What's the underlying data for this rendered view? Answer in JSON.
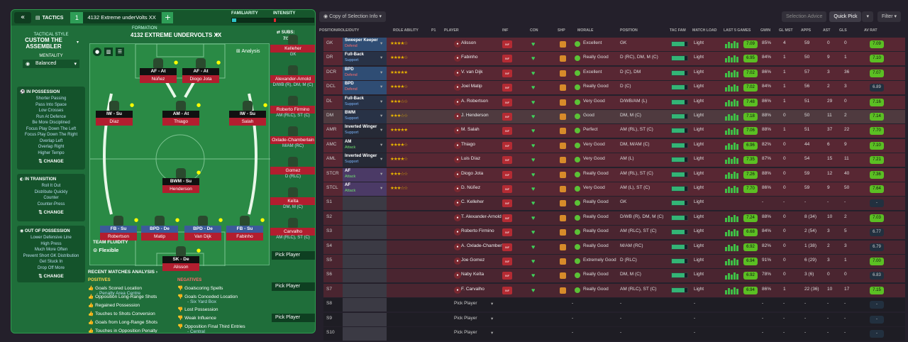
{
  "left": {
    "tactics_label": "TACTICS",
    "tactic_num": "1",
    "tactic_name": "4132 Extreme underVolts XX",
    "add": "+",
    "familiarity": "FAMILIARITY",
    "intensity": "INTENSITY",
    "tactical_style_label": "TACTICAL STYLE",
    "tactical_style": "CUSTOM THE ASSEMBLER",
    "mentality_label": "MENTALITY",
    "mentality": "Balanced",
    "formation_label": "FORMATION",
    "formation": "4132 EXTREME UNDERVOLTS XX",
    "subs_label": "SUBS:",
    "subs_count": "7/15",
    "analysis": "Analysis",
    "in_possession": {
      "title": "IN POSSESSION",
      "items": [
        "Shorter Passing",
        "Pass Into Space",
        "Low Crosses",
        "Run At Defence",
        "Be More Disciplined",
        "Focus Play Down The Left",
        "Focus Play Down The Right",
        "Overlap Left",
        "Overlap Right",
        "Higher Tempo"
      ],
      "change": "CHANGE"
    },
    "in_transition": {
      "title": "IN TRANSITION",
      "items": [
        "Roll It Out",
        "Distribute Quickly",
        "Counter",
        "Counter-Press"
      ],
      "change": "CHANGE"
    },
    "out_possession": {
      "title": "OUT OF POSSESSION",
      "items": [
        "Lower Defensive Line",
        "High Press",
        "Much More Often",
        "Prevent Short GK Distribution",
        "Get Stuck In",
        "Drop Off More"
      ],
      "change": "CHANGE"
    },
    "players": [
      {
        "role": "AF - At",
        "name": "Núñez"
      },
      {
        "role": "AF - At",
        "name": "Diogo Jota"
      },
      {
        "role": "IW - Su",
        "name": "Díaz"
      },
      {
        "role": "AM - At",
        "name": "Thiago"
      },
      {
        "role": "IW - Su",
        "name": "Salah"
      },
      {
        "role": "BWM - Su",
        "name": "Henderson"
      },
      {
        "role": "FB - Su",
        "name": "Robertson"
      },
      {
        "role": "BPD - De",
        "name": "Matip"
      },
      {
        "role": "BPD - De",
        "name": "Van Dijk"
      },
      {
        "role": "FB - Su",
        "name": "Fabinho"
      },
      {
        "role": "SK - De",
        "name": "Alisson"
      }
    ],
    "team_fluidity_label": "TEAM FLUIDITY",
    "team_fluidity": "Flexible",
    "subs": [
      {
        "name": "Kelleher",
        "pos": "GK"
      },
      {
        "name": "Alexander-Arnold",
        "pos": "D/WB (R), DM, M (C)"
      },
      {
        "name": "Roberto Firmino",
        "pos": "AM (RLC), ST (C)"
      },
      {
        "name": "Oxlade-Chamberlain",
        "pos": "M/AM (RC)"
      },
      {
        "name": "Gomez",
        "pos": "D (RLC)"
      },
      {
        "name": "Keïta",
        "pos": "DM, M (C)"
      },
      {
        "name": "Carvalho",
        "pos": "AM (RLC), ST (C)"
      }
    ],
    "pick_player": "Pick Player",
    "recent_title": "RECENT MATCHES ANALYSIS",
    "positives_label": "POSITIVES",
    "negatives_label": "NEGATIVES",
    "positives": [
      {
        "t": "Goals Scored Location",
        "s": "- Penalty Area Centre"
      },
      {
        "t": "Opposition Long-Range Shots",
        "s": ""
      },
      {
        "t": "Regained Possession",
        "s": ""
      },
      {
        "t": "Touches to Shots Conversion",
        "s": ""
      },
      {
        "t": "Goals from Long-Range Shots",
        "s": ""
      },
      {
        "t": "Touches in Opposition Penalty",
        "s": ""
      }
    ],
    "negatives": [
      {
        "t": "Goalscoring Spells",
        "s": ""
      },
      {
        "t": "Goals Conceded Location",
        "s": "- Six Yard Box"
      },
      {
        "t": "Lost Possession",
        "s": ""
      },
      {
        "t": "Weak Influence",
        "s": ""
      },
      {
        "t": "Opposition Final Third Entries",
        "s": "- Central"
      }
    ]
  },
  "right": {
    "copy_btn": "Copy of Selection Info",
    "selection_advice": "Selection Advice",
    "quick_pick": "Quick Pick",
    "filter": "Filter",
    "headers": [
      "POSITION/ROLE/DUTY",
      "ROLE ABILITY",
      "P1",
      "PLAYER",
      "INF",
      "CON",
      "SHP",
      "MORALE",
      "POSITION",
      "TAC FAM",
      "MATCH LOAD",
      "LAST 5 GAMES",
      "GWIN",
      "GL MST",
      "APPS",
      "AST",
      "GLS",
      "AV RAT"
    ],
    "rows": [
      {
        "pos": "GK",
        "t": "Sweeper Keeper",
        "d": "Defend",
        "stars": "★★★★☆",
        "player": "Alisson",
        "morale": "Excellent",
        "position": "GK",
        "load": "Light",
        "avr": "7.09",
        "gwin": "85%",
        "glm": "4",
        "apps": "59",
        "ast": "0",
        "gls": "0",
        "rat": "7.09"
      },
      {
        "pos": "DR",
        "t": "Full-Back",
        "d": "Support",
        "stars": "★★★★☆",
        "player": "Fabinho",
        "morale": "Really Good",
        "position": "D (RC), DM, M (C)",
        "load": "Light",
        "avr": "6.95",
        "gwin": "84%",
        "glm": "1",
        "apps": "50",
        "ast": "9",
        "gls": "1",
        "rat": "7.10"
      },
      {
        "pos": "DCR",
        "t": "BPD",
        "d": "Defend",
        "stars": "★★★★★",
        "player": "V. van Dijk",
        "morale": "Excellent",
        "position": "D (C), DM",
        "load": "Light",
        "avr": "7.02",
        "gwin": "86%",
        "glm": "1",
        "apps": "57",
        "ast": "3",
        "gls": "36",
        "rat": "7.07"
      },
      {
        "pos": "DCL",
        "t": "BPD",
        "d": "Defend",
        "stars": "★★★★☆",
        "player": "Joel Matip",
        "morale": "Really Good",
        "position": "D (C)",
        "load": "Light",
        "avr": "7.02",
        "gwin": "84%",
        "glm": "1",
        "apps": "56",
        "ast": "2",
        "gls": "3",
        "rat": "6.89"
      },
      {
        "pos": "DL",
        "t": "Full-Back",
        "d": "Support",
        "stars": "★★★☆☆",
        "player": "A. Robertson",
        "morale": "Very Good",
        "position": "D/WB/AM (L)",
        "load": "Light",
        "avr": "7.48",
        "gwin": "86%",
        "glm": "1",
        "apps": "51",
        "ast": "29",
        "gls": "0",
        "rat": "7.16"
      },
      {
        "pos": "DM",
        "t": "BWM",
        "d": "Support",
        "stars": "★★★☆☆",
        "player": "J. Henderson",
        "morale": "Good",
        "position": "DM, M (C)",
        "load": "Light",
        "avr": "7.18",
        "gwin": "88%",
        "glm": "0",
        "apps": "50",
        "ast": "11",
        "gls": "2",
        "rat": "7.14"
      },
      {
        "pos": "AMR",
        "t": "Inverted Winger",
        "d": "Support",
        "stars": "★★★★★",
        "player": "M. Salah",
        "morale": "Perfect",
        "position": "AM (RL), ST (C)",
        "load": "Light",
        "avr": "7.06",
        "gwin": "88%",
        "glm": "1",
        "apps": "51",
        "ast": "37",
        "gls": "22",
        "rat": "7.70"
      },
      {
        "pos": "AMC",
        "t": "AM",
        "d": "Attack",
        "stars": "★★★★☆",
        "player": "Thiago",
        "morale": "Very Good",
        "position": "DM, M/AM (C)",
        "load": "Light",
        "avr": "6.96",
        "gwin": "82%",
        "glm": "0",
        "apps": "44",
        "ast": "6",
        "gls": "9",
        "rat": "7.10"
      },
      {
        "pos": "AML",
        "t": "Inverted Winger",
        "d": "Support",
        "stars": "★★★★☆",
        "player": "Luis Díaz",
        "morale": "Very Good",
        "position": "AM (L)",
        "load": "Light",
        "avr": "7.35",
        "gwin": "87%",
        "glm": "0",
        "apps": "54",
        "ast": "15",
        "gls": "11",
        "rat": "7.21"
      },
      {
        "pos": "STCR",
        "t": "AF",
        "d": "Attack",
        "stars": "★★★☆☆",
        "player": "Diogo Jota",
        "morale": "Really Good",
        "position": "AM (RL), ST (C)",
        "load": "Light",
        "avr": "7.26",
        "gwin": "88%",
        "glm": "0",
        "apps": "59",
        "ast": "12",
        "gls": "40",
        "rat": "7.36"
      },
      {
        "pos": "STCL",
        "t": "AF",
        "d": "Attack",
        "stars": "★★★☆☆",
        "player": "D. Núñez",
        "morale": "Very Good",
        "position": "AM (L), ST (C)",
        "load": "Light",
        "avr": "7.70",
        "gwin": "86%",
        "glm": "0",
        "apps": "59",
        "ast": "9",
        "gls": "50",
        "rat": "7.64"
      },
      {
        "pos": "S1",
        "t": "",
        "d": "",
        "stars": "",
        "player": "C. Kelleher",
        "morale": "Really Good",
        "position": "GK",
        "load": "Light",
        "avr": "",
        "gwin": "-",
        "glm": "-",
        "apps": "-",
        "ast": "-",
        "gls": "-",
        "rat": "-"
      },
      {
        "pos": "S2",
        "t": "",
        "d": "",
        "stars": "",
        "player": "T. Alexander-Arnold",
        "morale": "Really Good",
        "position": "D/WB (R), DM, M (C)",
        "load": "Light",
        "avr": "7.24",
        "gwin": "88%",
        "glm": "0",
        "apps": "8 (34)",
        "ast": "10",
        "gls": "2",
        "rat": "7.03"
      },
      {
        "pos": "S3",
        "t": "",
        "d": "",
        "stars": "",
        "player": "Roberto Firmino",
        "morale": "Really Good",
        "position": "AM (RLC), ST (C)",
        "load": "Light",
        "avr": "6.68",
        "gwin": "84%",
        "glm": "0",
        "apps": "2 (54)",
        "ast": "3",
        "gls": "5",
        "rat": "6.77"
      },
      {
        "pos": "S4",
        "t": "",
        "d": "",
        "stars": "",
        "player": "A. Oxlade-Chamberlain",
        "morale": "Really Good",
        "position": "M/AM (RC)",
        "load": "Light",
        "avr": "6.92",
        "gwin": "82%",
        "glm": "0",
        "apps": "1 (38)",
        "ast": "2",
        "gls": "3",
        "rat": "6.79"
      },
      {
        "pos": "S5",
        "t": "",
        "d": "",
        "stars": "",
        "player": "Joe Gomez",
        "morale": "Extremely Good",
        "position": "D (RLC)",
        "load": "Light",
        "avr": "6.94",
        "gwin": "91%",
        "glm": "0",
        "apps": "6 (29)",
        "ast": "3",
        "gls": "1",
        "rat": "7.00"
      },
      {
        "pos": "S6",
        "t": "",
        "d": "",
        "stars": "",
        "player": "Naby Keïta",
        "morale": "Really Good",
        "position": "DM, M (C)",
        "load": "Light",
        "avr": "6.92",
        "gwin": "78%",
        "glm": "0",
        "apps": "3 (6)",
        "ast": "0",
        "gls": "0",
        "rat": "6.83"
      },
      {
        "pos": "S7",
        "t": "",
        "d": "",
        "stars": "",
        "player": "F. Carvalho",
        "morale": "Really Good",
        "position": "AM (RLC), ST (C)",
        "load": "Light",
        "avr": "6.94",
        "gwin": "86%",
        "glm": "1",
        "apps": "22 (36)",
        "ast": "10",
        "gls": "17",
        "rat": "7.15"
      },
      {
        "pos": "S8",
        "t": "",
        "d": "",
        "stars": "",
        "player": "Pick Player",
        "morale": "-",
        "position": "-",
        "load": "-",
        "avr": "",
        "gwin": "-",
        "glm": "-",
        "apps": "-",
        "ast": "-",
        "gls": "-",
        "rat": "-"
      },
      {
        "pos": "S9",
        "t": "",
        "d": "",
        "stars": "",
        "player": "Pick Player",
        "morale": "-",
        "position": "-",
        "load": "-",
        "avr": "",
        "gwin": "-",
        "glm": "-",
        "apps": "-",
        "ast": "-",
        "gls": "-",
        "rat": "-"
      },
      {
        "pos": "S10",
        "t": "",
        "d": "",
        "stars": "",
        "player": "Pick Player",
        "morale": "-",
        "position": "-",
        "load": "-",
        "avr": "",
        "gwin": "-",
        "glm": "-",
        "apps": "-",
        "ast": "-",
        "gls": "-",
        "rat": "-"
      }
    ]
  },
  "colors": {
    "accent_green": "#1f6e3a",
    "red": "#b21e2f",
    "defend_bg": "#2f4d74",
    "support_bg": "#283246",
    "attack_bg": "#4b3a66",
    "rating": "#5bbf23"
  }
}
